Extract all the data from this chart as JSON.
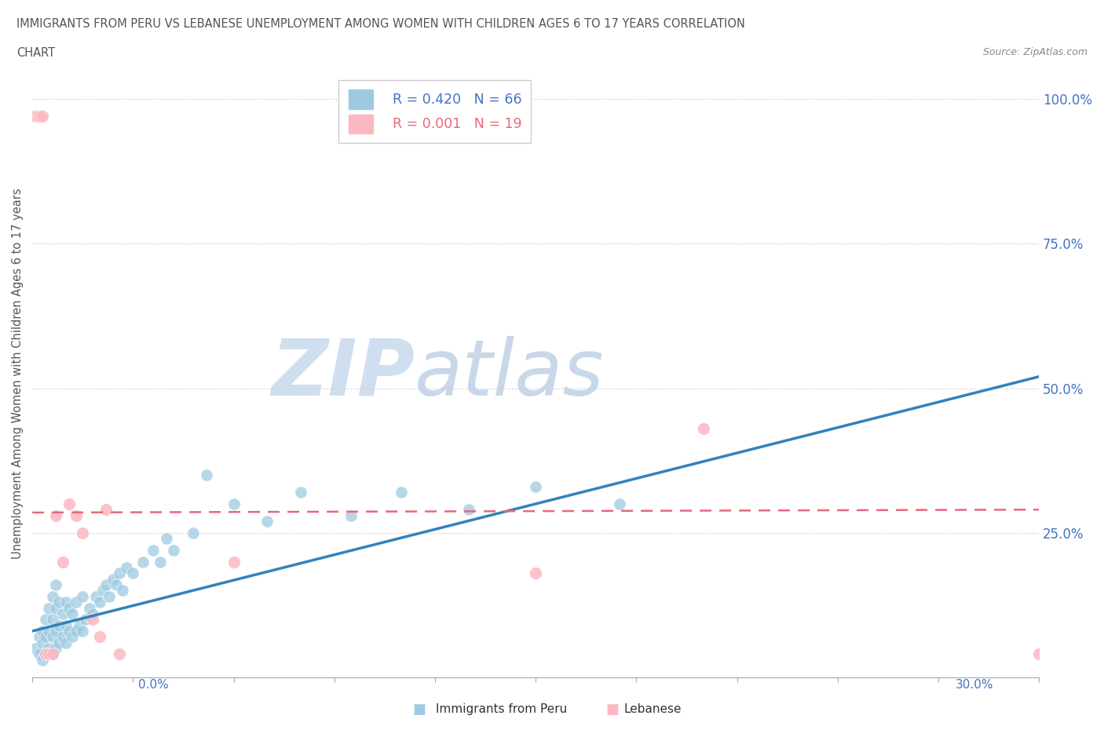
{
  "title_line1": "IMMIGRANTS FROM PERU VS LEBANESE UNEMPLOYMENT AMONG WOMEN WITH CHILDREN AGES 6 TO 17 YEARS CORRELATION",
  "title_line2": "CHART",
  "source": "Source: ZipAtlas.com",
  "ylabel": "Unemployment Among Women with Children Ages 6 to 17 years",
  "xlim": [
    0.0,
    0.3
  ],
  "ylim": [
    0.0,
    1.05
  ],
  "legend_r1": "R = 0.420   N = 66",
  "legend_r2": "R = 0.001   N = 19",
  "color_peru": "#9ecae1",
  "color_lebanese": "#fcb8c0",
  "color_trend_peru": "#3182bd",
  "color_trend_lebanese": "#e8687a",
  "watermark_zip": "ZIP",
  "watermark_atlas": "atlas",
  "peru_x": [
    0.001,
    0.002,
    0.002,
    0.003,
    0.003,
    0.003,
    0.004,
    0.004,
    0.004,
    0.005,
    0.005,
    0.005,
    0.006,
    0.006,
    0.006,
    0.006,
    0.007,
    0.007,
    0.007,
    0.007,
    0.008,
    0.008,
    0.008,
    0.009,
    0.009,
    0.01,
    0.01,
    0.01,
    0.011,
    0.011,
    0.012,
    0.012,
    0.013,
    0.013,
    0.014,
    0.015,
    0.015,
    0.016,
    0.017,
    0.018,
    0.019,
    0.02,
    0.021,
    0.022,
    0.023,
    0.024,
    0.025,
    0.026,
    0.027,
    0.028,
    0.03,
    0.033,
    0.036,
    0.038,
    0.04,
    0.042,
    0.048,
    0.052,
    0.06,
    0.07,
    0.08,
    0.095,
    0.11,
    0.13,
    0.15,
    0.175
  ],
  "peru_y": [
    0.05,
    0.04,
    0.07,
    0.03,
    0.06,
    0.08,
    0.04,
    0.07,
    0.1,
    0.05,
    0.08,
    0.12,
    0.04,
    0.07,
    0.1,
    0.14,
    0.05,
    0.08,
    0.12,
    0.16,
    0.06,
    0.09,
    0.13,
    0.07,
    0.11,
    0.06,
    0.09,
    0.13,
    0.08,
    0.12,
    0.07,
    0.11,
    0.08,
    0.13,
    0.09,
    0.08,
    0.14,
    0.1,
    0.12,
    0.11,
    0.14,
    0.13,
    0.15,
    0.16,
    0.14,
    0.17,
    0.16,
    0.18,
    0.15,
    0.19,
    0.18,
    0.2,
    0.22,
    0.2,
    0.24,
    0.22,
    0.25,
    0.35,
    0.3,
    0.27,
    0.32,
    0.28,
    0.32,
    0.29,
    0.33,
    0.3
  ],
  "lebanese_x": [
    0.001,
    0.002,
    0.003,
    0.004,
    0.005,
    0.006,
    0.007,
    0.009,
    0.011,
    0.013,
    0.015,
    0.018,
    0.02,
    0.022,
    0.026,
    0.06,
    0.15,
    0.2,
    0.3
  ],
  "lebanese_y": [
    0.97,
    0.97,
    0.97,
    0.04,
    0.04,
    0.04,
    0.28,
    0.2,
    0.3,
    0.28,
    0.25,
    0.1,
    0.07,
    0.29,
    0.04,
    0.2,
    0.18,
    0.43,
    0.04
  ],
  "peru_trend_x0": 0.0,
  "peru_trend_x1": 0.3,
  "peru_trend_y0": 0.08,
  "peru_trend_y1": 0.52,
  "leb_trend_x0": 0.0,
  "leb_trend_x1": 0.3,
  "leb_trend_y0": 0.285,
  "leb_trend_y1": 0.29
}
